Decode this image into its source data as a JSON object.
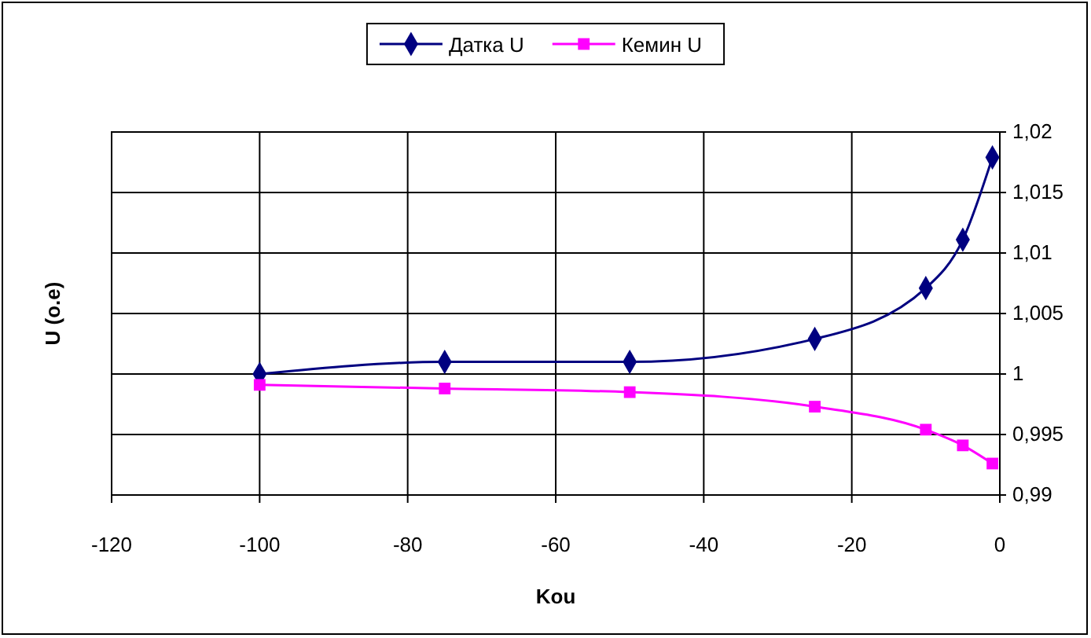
{
  "chart_data": {
    "type": "line",
    "xlabel": "Kou",
    "ylabel": "U (o.e)",
    "xlim": [
      -120,
      0
    ],
    "xticks": [
      -120,
      -100,
      -80,
      -60,
      -40,
      -20,
      0
    ],
    "ylim": [
      0.99,
      1.02
    ],
    "yticks": [
      {
        "value": 0.99,
        "label": "0,99"
      },
      {
        "value": 0.995,
        "label": "0,995"
      },
      {
        "value": 1,
        "label": "1"
      },
      {
        "value": 1.005,
        "label": "1,005"
      },
      {
        "value": 1.01,
        "label": "1,01"
      },
      {
        "value": 1.015,
        "label": "1,015"
      },
      {
        "value": 1.02,
        "label": "1,02"
      }
    ],
    "grid": true,
    "legend": "top",
    "series": [
      {
        "name": "Датка U",
        "color": "#000080",
        "marker": "diamond",
        "x": [
          -100,
          -75,
          -50,
          -25,
          -10,
          -5,
          -1
        ],
        "values": [
          1.0,
          1.001,
          1.001,
          1.0029,
          1.0071,
          1.0111,
          1.0179
        ]
      },
      {
        "name": "Кемин U",
        "color": "#ff00ff",
        "marker": "square",
        "x": [
          -100,
          -75,
          -50,
          -25,
          -10,
          -5,
          -1
        ],
        "values": [
          0.9991,
          0.9988,
          0.9985,
          0.9973,
          0.9954,
          0.9941,
          0.9926
        ]
      }
    ]
  }
}
